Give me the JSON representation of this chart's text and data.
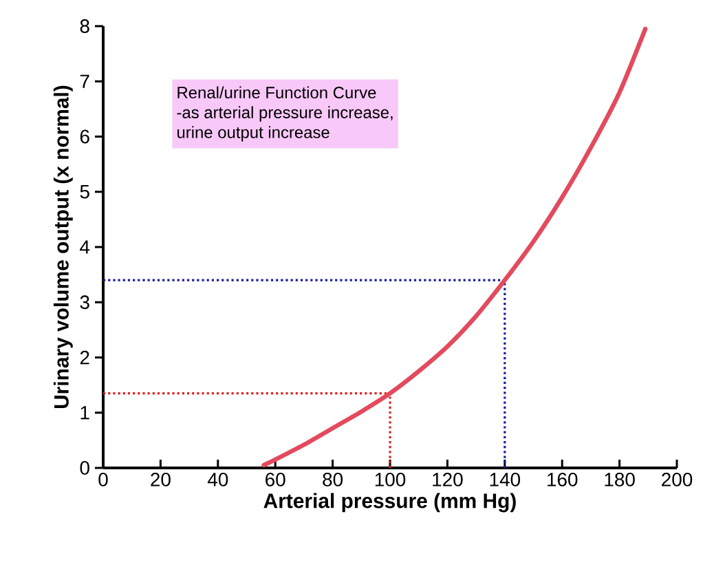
{
  "chart_data": {
    "type": "line",
    "xlabel": "Arterial pressure (mm Hg)",
    "ylabel": "Urinary volume output (x normal)",
    "x": [
      56,
      60,
      70,
      80,
      90,
      100,
      110,
      120,
      130,
      140,
      150,
      160,
      170,
      180,
      189
    ],
    "series": [
      {
        "color": "#e34a5e",
        "values": [
          0.05,
          0.15,
          0.42,
          0.72,
          1.02,
          1.35,
          1.75,
          2.2,
          2.75,
          3.4,
          4.1,
          4.9,
          5.8,
          6.8,
          7.95
        ]
      }
    ],
    "xlim": [
      0,
      200
    ],
    "ylim": [
      0,
      8
    ],
    "xticks": [
      0,
      20,
      40,
      60,
      80,
      100,
      120,
      140,
      160,
      180,
      200
    ],
    "yticks": [
      0,
      1,
      2,
      3,
      4,
      5,
      6,
      7,
      8
    ],
    "ref_lines": [
      {
        "axis": "x",
        "value": 100,
        "color": "#e02020",
        "line_style": "dotted"
      },
      {
        "axis": "y",
        "value": 1.35,
        "color": "#e02020",
        "line_style": "dotted"
      },
      {
        "axis": "x",
        "value": 140,
        "color": "#1a1aa0",
        "line_style": "dotted"
      },
      {
        "axis": "y",
        "value": 3.4,
        "color": "#1a1aa0",
        "line_style": "dotted"
      }
    ],
    "annotations": [
      "Renal/urine Function Curve",
      "-as arterial pressure increase,",
      "urine output increase"
    ],
    "grid": false,
    "marker": "none",
    "line_style": "solid"
  }
}
